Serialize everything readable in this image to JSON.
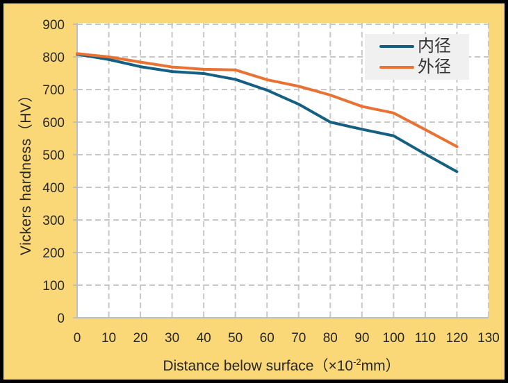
{
  "frame": {
    "background_color": "#FAD878",
    "border_color": "#000000",
    "plot_background": "#FFFFFF",
    "grid_color": "#C7C7C7",
    "axis_color": "#BFBFBF",
    "text_color": "#262626",
    "legend_background": "#F0F0F0"
  },
  "chart_data": {
    "type": "line",
    "title": "",
    "x": [
      0,
      10,
      20,
      30,
      40,
      50,
      60,
      70,
      80,
      90,
      100,
      110,
      120
    ],
    "series": [
      {
        "name": "内径",
        "color": "#156082",
        "values": [
          808,
          792,
          770,
          755,
          749,
          731,
          698,
          655,
          600,
          578,
          558,
          502,
          448
        ]
      },
      {
        "name": "外径",
        "color": "#E97132",
        "values": [
          810,
          800,
          784,
          769,
          762,
          760,
          730,
          710,
          683,
          648,
          628,
          577,
          525
        ]
      }
    ],
    "xlabel": {
      "prefix": "Distance below surface（×10",
      "sup": "-2",
      "suffix": "mm）"
    },
    "ylabel": "Vickers hardness（HV）",
    "xlim": [
      0,
      130
    ],
    "ylim": [
      0,
      900
    ],
    "x_ticks": [
      0,
      10,
      20,
      30,
      40,
      50,
      60,
      70,
      80,
      90,
      100,
      110,
      120,
      130
    ],
    "y_ticks": [
      0,
      100,
      200,
      300,
      400,
      500,
      600,
      700,
      800,
      900
    ],
    "grid": {
      "dashed": true,
      "horizontal": true,
      "vertical": true
    },
    "legend_position": "top-right"
  }
}
